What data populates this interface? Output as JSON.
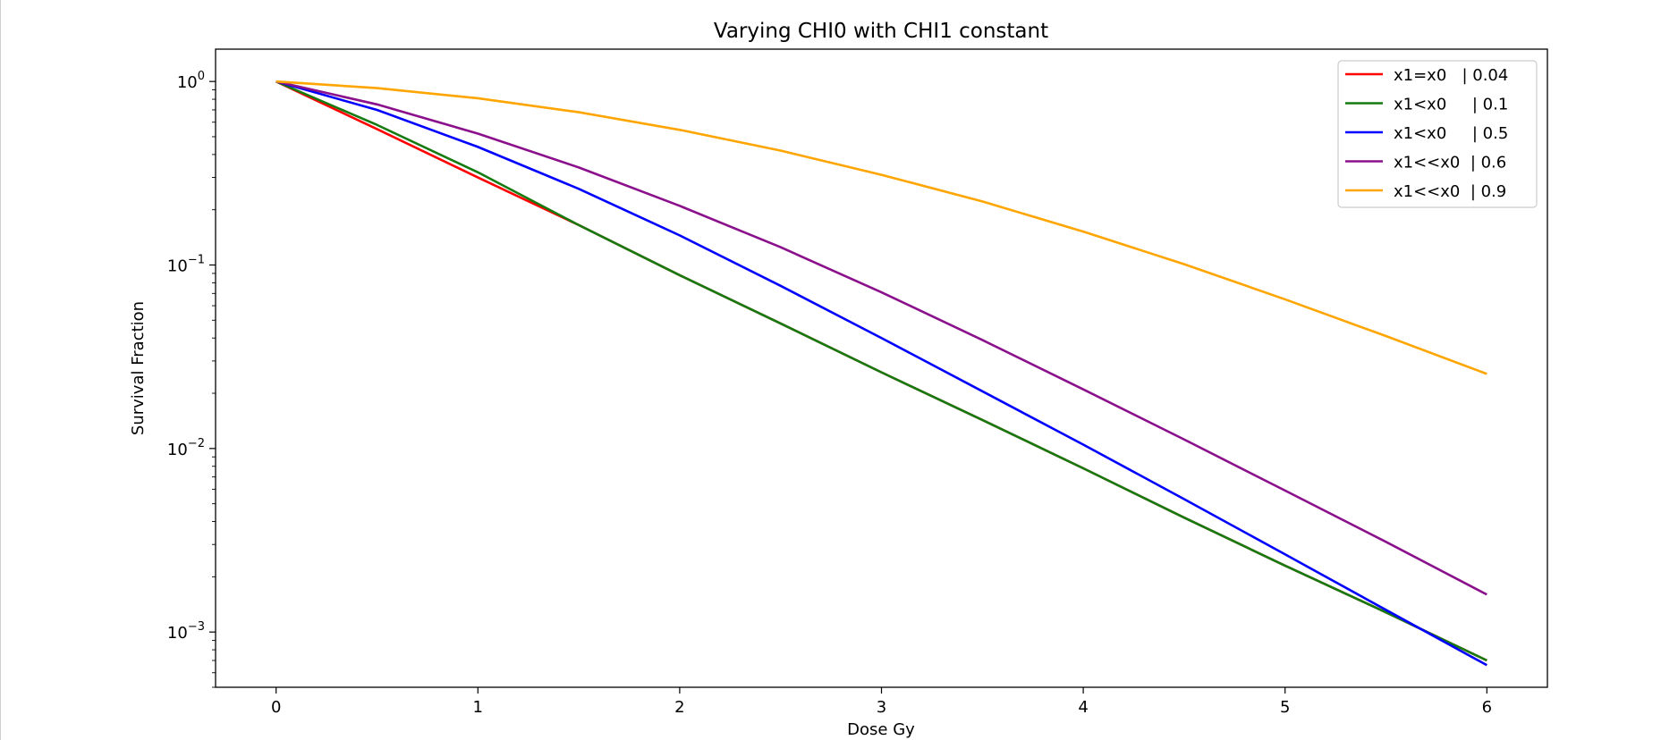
{
  "chart_data": {
    "type": "line",
    "title": "Varying CHI0 with CHI1 constant",
    "xlabel": "Dose Gy",
    "ylabel": "Survival Fraction",
    "xlim": [
      -0.3,
      6.3
    ],
    "ylim": [
      0.0005,
      1.5
    ],
    "yscale": "log",
    "grid": false,
    "legend_position": "top-right",
    "x_ticks": [
      0,
      1,
      2,
      3,
      4,
      5,
      6
    ],
    "x_tick_labels": [
      "0",
      "1",
      "2",
      "3",
      "4",
      "5",
      "6"
    ],
    "y_ticks": [
      1,
      0.1,
      0.01,
      0.001
    ],
    "y_tick_labels": [
      {
        "base": "10",
        "exp": "0"
      },
      {
        "base": "10",
        "exp": "−1"
      },
      {
        "base": "10",
        "exp": "−2"
      },
      {
        "base": "10",
        "exp": "−3"
      }
    ],
    "x": [
      0,
      0.5,
      1,
      1.5,
      2,
      2.5,
      3,
      3.5,
      4,
      4.5,
      5,
      5.5,
      6
    ],
    "series": [
      {
        "name": "x1=x0   | 0.04",
        "color": "#ff0000",
        "values": [
          1.0,
          0.55,
          0.3,
          0.165,
          0.088,
          0.048,
          0.026,
          0.0143,
          0.0078,
          0.0042,
          0.0023,
          0.00128,
          0.0007
        ]
      },
      {
        "name": "x1<x0     | 0.1",
        "color": "#157a10",
        "values": [
          1.0,
          0.58,
          0.32,
          0.165,
          0.088,
          0.048,
          0.026,
          0.0143,
          0.0078,
          0.0042,
          0.0023,
          0.00128,
          0.0007
        ]
      },
      {
        "name": "x1<x0     | 0.5",
        "color": "#0000ff",
        "values": [
          1.0,
          0.7,
          0.44,
          0.26,
          0.145,
          0.077,
          0.04,
          0.0205,
          0.0105,
          0.0053,
          0.00265,
          0.00132,
          0.00066
        ]
      },
      {
        "name": "x1<<x0  | 0.6",
        "color": "#8b108b",
        "values": [
          1.0,
          0.75,
          0.52,
          0.34,
          0.21,
          0.125,
          0.071,
          0.039,
          0.021,
          0.0112,
          0.0059,
          0.0031,
          0.0016
        ]
      },
      {
        "name": "x1<<x0  | 0.9",
        "color": "#ffa500",
        "values": [
          1.0,
          0.92,
          0.81,
          0.68,
          0.545,
          0.42,
          0.31,
          0.222,
          0.152,
          0.101,
          0.065,
          0.041,
          0.0255
        ]
      }
    ]
  }
}
